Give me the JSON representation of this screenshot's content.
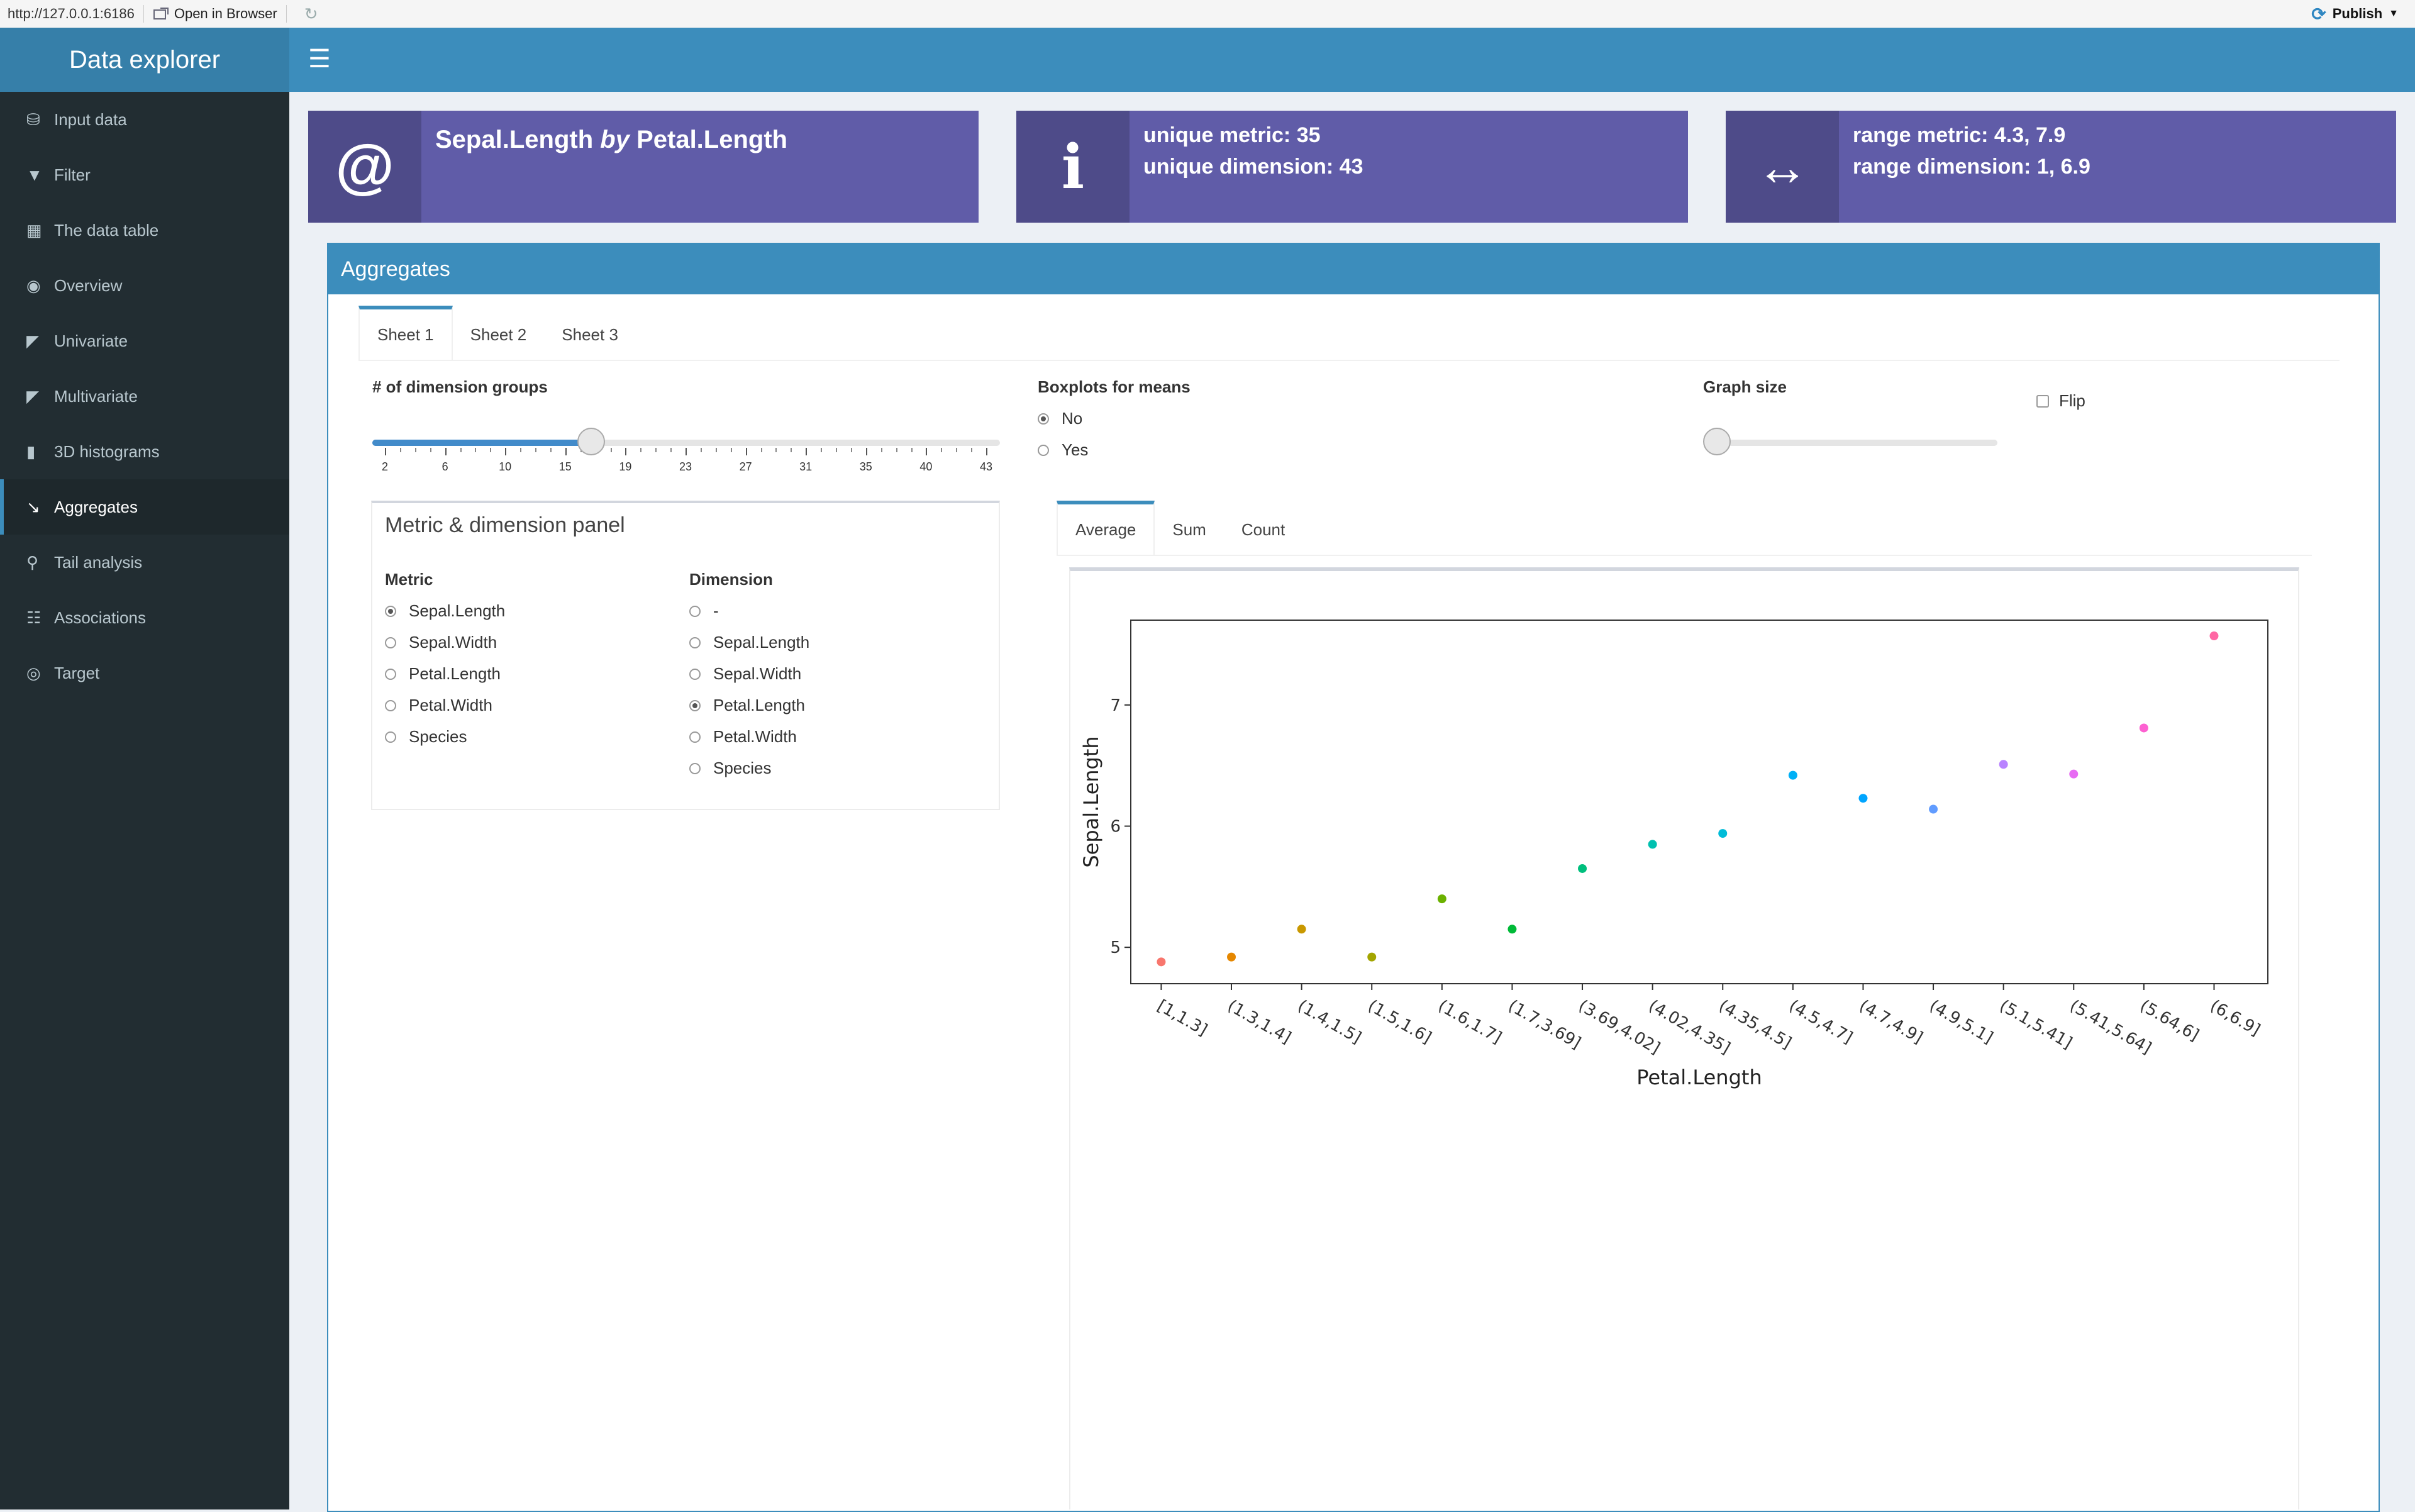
{
  "viewer": {
    "url": "http://127.0.0.1:6186",
    "open_label": "Open in Browser",
    "publish_label": "Publish"
  },
  "header": {
    "title": "Data explorer"
  },
  "sidebar": {
    "items": [
      {
        "label": "Input data",
        "icon": "database-icon"
      },
      {
        "label": "Filter",
        "icon": "filter-icon"
      },
      {
        "label": "The data table",
        "icon": "table-icon"
      },
      {
        "label": "Overview",
        "icon": "binoculars-icon"
      },
      {
        "label": "Univariate",
        "icon": "area-chart-icon"
      },
      {
        "label": "Multivariate",
        "icon": "area-chart-icon"
      },
      {
        "label": "3D histograms",
        "icon": "bar-chart-icon"
      },
      {
        "label": "Aggregates",
        "icon": "line-chart-icon",
        "active": true
      },
      {
        "label": "Tail analysis",
        "icon": "search-icon"
      },
      {
        "label": "Associations",
        "icon": "sitemap-icon"
      },
      {
        "label": "Target",
        "icon": "bullseye-icon"
      }
    ]
  },
  "infoboxes": {
    "title": {
      "metric": "Sepal.Length",
      "by": "by",
      "dimension": "Petal.Length"
    },
    "unique": {
      "line1": "unique metric: 35",
      "line2": "unique dimension: 43"
    },
    "range": {
      "line1": "range metric: 4.3, 7.9",
      "line2": "range dimension: 1, 6.9"
    }
  },
  "aggregates": {
    "title": "Aggregates",
    "sheets": [
      "Sheet 1",
      "Sheet 2",
      "Sheet 3"
    ],
    "groups_slider": {
      "label": "# of dimension groups",
      "min": 2,
      "max": 43,
      "value": 17,
      "ticks": [
        "2",
        "6",
        "10",
        "15",
        "19",
        "23",
        "27",
        "31",
        "35",
        "40",
        "43"
      ]
    },
    "boxplots": {
      "label": "Boxplots for means",
      "options": [
        "No",
        "Yes"
      ],
      "selected": "No"
    },
    "graph_size": {
      "label": "Graph size",
      "value": 0
    },
    "flip": {
      "label": "Flip",
      "checked": false
    },
    "panel": {
      "title": "Metric & dimension panel",
      "metric_label": "Metric",
      "metric_options": [
        "Sepal.Length",
        "Sepal.Width",
        "Petal.Length",
        "Petal.Width",
        "Species"
      ],
      "metric_selected": "Sepal.Length",
      "dimension_label": "Dimension",
      "dimension_options": [
        "-",
        "Sepal.Length",
        "Sepal.Width",
        "Petal.Length",
        "Petal.Width",
        "Species"
      ],
      "dimension_selected": "Petal.Length"
    },
    "chart_tabs": [
      "Average",
      "Sum",
      "Count"
    ]
  },
  "chart_data": {
    "type": "scatter",
    "title": "",
    "xlabel": "Petal.Length",
    "ylabel": "Sepal.Length",
    "categories": [
      "[1,1.3]",
      "(1.3,1.4]",
      "(1.4,1.5]",
      "(1.5,1.6]",
      "(1.6,1.7]",
      "(1.7,3.69]",
      "(3.69,4.02]",
      "(4.02,4.35]",
      "(4.35,4.5]",
      "(4.5,4.7]",
      "(4.7,4.9]",
      "(4.9,5.1]",
      "(5.1,5.41]",
      "(5.41,5.64]",
      "(5.64,6]",
      "(6,6.9]"
    ],
    "values": [
      4.88,
      4.92,
      5.15,
      4.92,
      5.4,
      5.15,
      5.65,
      5.85,
      5.94,
      6.42,
      6.23,
      6.14,
      6.51,
      6.43,
      6.81,
      7.57
    ],
    "colors": [
      "#F8766D",
      "#E58700",
      "#C99800",
      "#A3A500",
      "#6BB100",
      "#00BA38",
      "#00BF7D",
      "#00C0AF",
      "#00BCD8",
      "#00B0F6",
      "#00A5FF",
      "#619CFF",
      "#B983FF",
      "#E76BF3",
      "#FD61D1",
      "#FF67A4"
    ],
    "ylim": [
      4.7,
      7.7
    ],
    "yticks": [
      5,
      6,
      7
    ],
    "grid": false
  }
}
